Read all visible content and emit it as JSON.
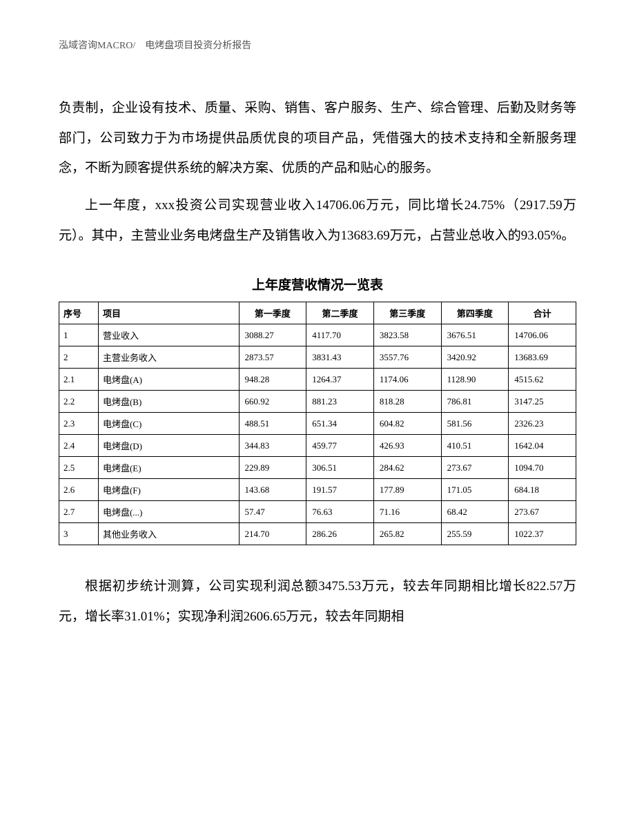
{
  "header": "泓域咨询MACRO/　电烤盘项目投资分析报告",
  "paragraph1": "负责制，企业设有技术、质量、采购、销售、客户服务、生产、综合管理、后勤及财务等部门，公司致力于为市场提供品质优良的项目产品，凭借强大的技术支持和全新服务理念，不断为顾客提供系统的解决方案、优质的产品和贴心的服务。",
  "paragraph2": "上一年度，xxx投资公司实现营业收入14706.06万元，同比增长24.75%（2917.59万元）。其中，主营业业务电烤盘生产及销售收入为13683.69万元，占营业总收入的93.05%。",
  "tableTitle": "上年度营收情况一览表",
  "table": {
    "headers": {
      "idx": "序号",
      "name": "项目",
      "q1": "第一季度",
      "q2": "第二季度",
      "q3": "第三季度",
      "q4": "第四季度",
      "total": "合计"
    },
    "rows": [
      {
        "idx": "1",
        "name": "营业收入",
        "q1": "3088.27",
        "q2": "4117.70",
        "q3": "3823.58",
        "q4": "3676.51",
        "total": "14706.06"
      },
      {
        "idx": "2",
        "name": "主营业务收入",
        "q1": "2873.57",
        "q2": "3831.43",
        "q3": "3557.76",
        "q4": "3420.92",
        "total": "13683.69"
      },
      {
        "idx": "2.1",
        "name": "电烤盘(A)",
        "q1": "948.28",
        "q2": "1264.37",
        "q3": "1174.06",
        "q4": "1128.90",
        "total": "4515.62"
      },
      {
        "idx": "2.2",
        "name": "电烤盘(B)",
        "q1": "660.92",
        "q2": "881.23",
        "q3": "818.28",
        "q4": "786.81",
        "total": "3147.25"
      },
      {
        "idx": "2.3",
        "name": "电烤盘(C)",
        "q1": "488.51",
        "q2": "651.34",
        "q3": "604.82",
        "q4": "581.56",
        "total": "2326.23"
      },
      {
        "idx": "2.4",
        "name": "电烤盘(D)",
        "q1": "344.83",
        "q2": "459.77",
        "q3": "426.93",
        "q4": "410.51",
        "total": "1642.04"
      },
      {
        "idx": "2.5",
        "name": "电烤盘(E)",
        "q1": "229.89",
        "q2": "306.51",
        "q3": "284.62",
        "q4": "273.67",
        "total": "1094.70"
      },
      {
        "idx": "2.6",
        "name": "电烤盘(F)",
        "q1": "143.68",
        "q2": "191.57",
        "q3": "177.89",
        "q4": "171.05",
        "total": "684.18"
      },
      {
        "idx": "2.7",
        "name": "电烤盘(...)",
        "q1": "57.47",
        "q2": "76.63",
        "q3": "71.16",
        "q4": "68.42",
        "total": "273.67"
      },
      {
        "idx": "3",
        "name": "其他业务收入",
        "q1": "214.70",
        "q2": "286.26",
        "q3": "265.82",
        "q4": "255.59",
        "total": "1022.37"
      }
    ]
  },
  "paragraph3": "根据初步统计测算，公司实现利润总额3475.53万元，较去年同期相比增长822.57万元，增长率31.01%；实现净利润2606.65万元，较去年同期相"
}
